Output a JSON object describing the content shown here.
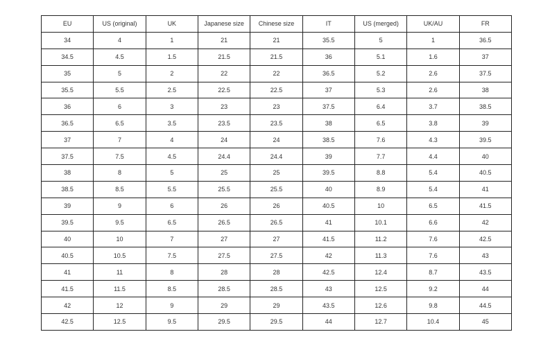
{
  "table": {
    "headers": [
      "EU",
      "US (original)",
      "UK",
      "Japanese size",
      "Chinese size",
      "IT",
      "US (merged)",
      "UK/AU",
      "FR"
    ],
    "rows": [
      [
        "34",
        "4",
        "1",
        "21",
        "21",
        "35.5",
        "5",
        "1",
        "36.5"
      ],
      [
        "34.5",
        "4.5",
        "1.5",
        "21.5",
        "21.5",
        "36",
        "5.1",
        "1.6",
        "37"
      ],
      [
        "35",
        "5",
        "2",
        "22",
        "22",
        "36.5",
        "5.2",
        "2.6",
        "37.5"
      ],
      [
        "35.5",
        "5.5",
        "2.5",
        "22.5",
        "22.5",
        "37",
        "5.3",
        "2.6",
        "38"
      ],
      [
        "36",
        "6",
        "3",
        "23",
        "23",
        "37.5",
        "6.4",
        "3.7",
        "38.5"
      ],
      [
        "36.5",
        "6.5",
        "3.5",
        "23.5",
        "23.5",
        "38",
        "6.5",
        "3.8",
        "39"
      ],
      [
        "37",
        "7",
        "4",
        "24",
        "24",
        "38.5",
        "7.6",
        "4.3",
        "39.5"
      ],
      [
        "37.5",
        "7.5",
        "4.5",
        "24.4",
        "24.4",
        "39",
        "7.7",
        "4.4",
        "40"
      ],
      [
        "38",
        "8",
        "5",
        "25",
        "25",
        "39.5",
        "8.8",
        "5.4",
        "40.5"
      ],
      [
        "38.5",
        "8.5",
        "5.5",
        "25.5",
        "25.5",
        "40",
        "8.9",
        "5.4",
        "41"
      ],
      [
        "39",
        "9",
        "6",
        "26",
        "26",
        "40.5",
        "10",
        "6.5",
        "41.5"
      ],
      [
        "39.5",
        "9.5",
        "6.5",
        "26.5",
        "26.5",
        "41",
        "10.1",
        "6.6",
        "42"
      ],
      [
        "40",
        "10",
        "7",
        "27",
        "27",
        "41.5",
        "11.2",
        "7.6",
        "42.5"
      ],
      [
        "40.5",
        "10.5",
        "7.5",
        "27.5",
        "27.5",
        "42",
        "11.3",
        "7.6",
        "43"
      ],
      [
        "41",
        "11",
        "8",
        "28",
        "28",
        "42.5",
        "12.4",
        "8.7",
        "43.5"
      ],
      [
        "41.5",
        "11.5",
        "8.5",
        "28.5",
        "28.5",
        "43",
        "12.5",
        "9.2",
        "44"
      ],
      [
        "42",
        "12",
        "9",
        "29",
        "29",
        "43.5",
        "12.6",
        "9.8",
        "44.5"
      ],
      [
        "42.5",
        "12.5",
        "9.5",
        "29.5",
        "29.5",
        "44",
        "12.7",
        "10.4",
        "45"
      ]
    ]
  }
}
